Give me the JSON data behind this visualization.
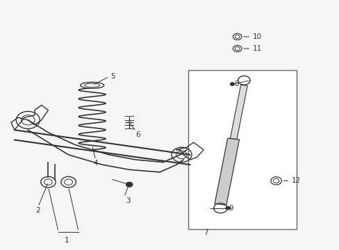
{
  "bg_color": "#f5f5f5",
  "line_color": "#333333",
  "fig_width": 4.89,
  "fig_height": 3.6,
  "dpi": 100
}
